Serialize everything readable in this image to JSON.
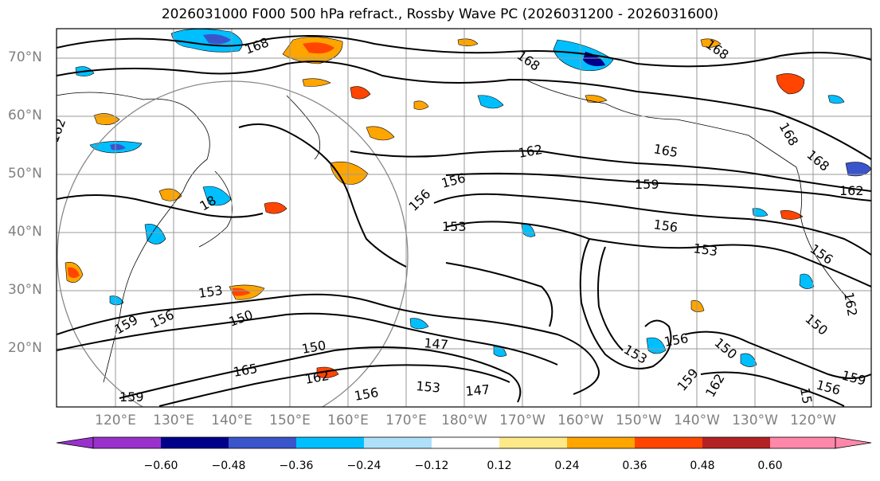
{
  "title": "2026031000 F000 500 hPa refract., Rossby Wave PC (2026031200 - 2026031600)",
  "lat_labels": [
    "70°N",
    "60°N",
    "50°N",
    "40°N",
    "30°N",
    "20°N"
  ],
  "lon_labels": [
    "120°E",
    "130°E",
    "140°E",
    "150°E",
    "160°E",
    "170°E",
    "180°W",
    "170°W",
    "160°W",
    "150°W",
    "140°W",
    "130°W",
    "120°W"
  ],
  "contour_labels": [
    "168",
    "168",
    "168",
    "168",
    "168",
    "162",
    "162",
    "165",
    "162",
    "159",
    "156",
    "156",
    "153",
    "156",
    "153",
    "156",
    "153",
    "150",
    "159",
    "156",
    "150",
    "150",
    "147",
    "165",
    "162",
    "153",
    "147",
    "156",
    "153",
    "159",
    "162",
    "156",
    "150",
    "159",
    "15",
    "156",
    "18",
    "159",
    "162"
  ],
  "colorbar": {
    "ticks": [
      "−0.60",
      "−0.48",
      "−0.36",
      "−0.24",
      "−0.12",
      "0.12",
      "0.24",
      "0.36",
      "0.48",
      "0.60"
    ],
    "colors": [
      "#9932cc",
      "#00008b",
      "#3a55cc",
      "#00bfff",
      "#aee0fa",
      "#ffffff",
      "#fde98a",
      "#ffa500",
      "#ff4500",
      "#b22222",
      "#ff88aa"
    ]
  },
  "shading_colors": {
    "neg_strong": "#00008b",
    "neg_mid": "#3a55cc",
    "neg": "#00bfff",
    "neg_weak": "#aee0fa",
    "pos_weak": "#fde98a",
    "pos": "#ffa500",
    "pos_mid": "#ff4500",
    "pos_strong": "#b22222"
  }
}
